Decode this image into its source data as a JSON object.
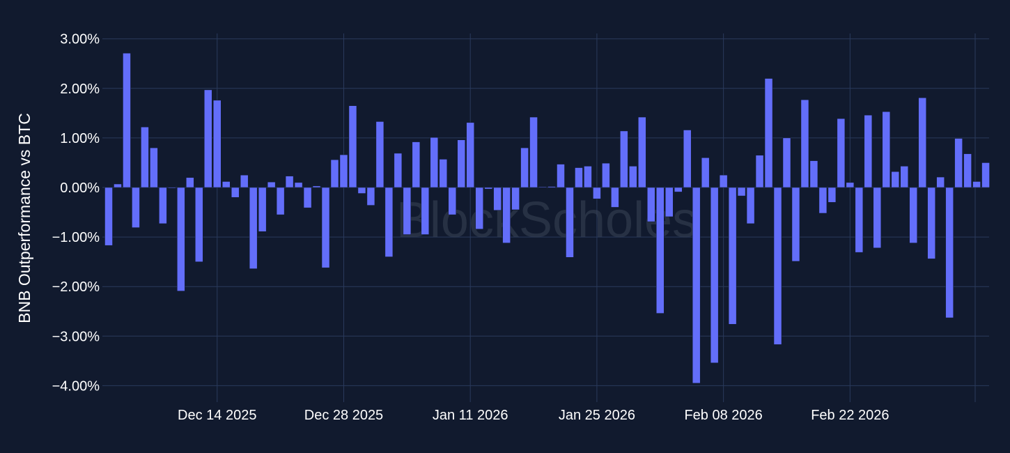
{
  "chart_data": {
    "type": "bar",
    "ylabel": "BNB Outperformance vs BTC",
    "watermark": "BlockScholes",
    "ylim": [
      -4.2,
      3.2
    ],
    "y_ticks": [
      3,
      2,
      1,
      0,
      -1,
      -2,
      -3,
      -4
    ],
    "y_tick_labels": [
      "3.00%",
      "2.00%",
      "1.00%",
      "0.00%",
      "−1.00%",
      "−2.00%",
      "−3.00%",
      "−4.00%"
    ],
    "x_tick_labels": [
      "Dec 14 2025",
      "Dec 28 2025",
      "Jan 11 2026",
      "Jan 25 2026",
      "Feb 08 2026",
      "Feb 22 2026"
    ],
    "x_tick_dates": [
      "2025-12-14",
      "2025-12-28",
      "2026-01-11",
      "2026-01-25",
      "2026-02-08",
      "2026-02-22"
    ],
    "bar_color": "#636efa",
    "grid": true,
    "start_date": "2025-12-02",
    "values": [
      -1.17,
      0.07,
      2.71,
      -0.81,
      1.22,
      0.8,
      -0.73,
      0.0,
      -2.09,
      0.2,
      -1.5,
      1.97,
      1.76,
      0.12,
      -0.2,
      0.25,
      -1.64,
      -0.89,
      0.11,
      -0.55,
      0.23,
      0.1,
      -0.41,
      0.03,
      -1.62,
      0.56,
      0.66,
      1.65,
      -0.12,
      -0.36,
      1.33,
      -1.4,
      0.69,
      -0.95,
      0.92,
      -0.95,
      1.01,
      0.57,
      -0.55,
      0.96,
      1.31,
      -0.84,
      -0.03,
      -0.46,
      -1.12,
      -0.45,
      0.8,
      1.42,
      0.01,
      0.02,
      0.47,
      -1.41,
      0.4,
      0.43,
      -0.23,
      0.49,
      -0.4,
      1.14,
      0.43,
      1.42,
      -0.69,
      -2.54,
      -0.59,
      -0.09,
      1.16,
      -3.95,
      0.6,
      -3.54,
      0.25,
      -2.76,
      -0.17,
      -0.73,
      0.65,
      2.2,
      -3.17,
      1.0,
      -1.49,
      1.77,
      0.54,
      -0.52,
      -0.3,
      1.39,
      0.1,
      -1.31,
      1.46,
      -1.22,
      1.53,
      0.32,
      0.43,
      -1.12,
      1.81,
      -1.44,
      0.21,
      -2.63,
      0.99,
      0.68,
      0.12,
      0.5
    ]
  }
}
